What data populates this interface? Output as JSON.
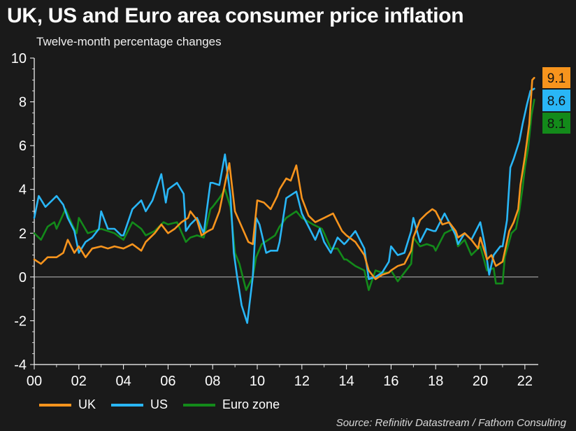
{
  "title": "UK, US and Euro area consumer price inflation",
  "subtitle": "Twelve-month percentage changes",
  "source": "Source: Refinitiv Datastream / Fathom Consulting",
  "colors": {
    "background": "#1a1a1a",
    "uk": "#f7941d",
    "us": "#29b6f6",
    "euro": "#138a1a",
    "axis": "#ffffff"
  },
  "chart_data": {
    "type": "line",
    "title": "UK, US and Euro area consumer price inflation",
    "ylabel": "Twelve-month percentage changes",
    "xlim": [
      2000,
      2022.6
    ],
    "ylim": [
      -4,
      10
    ],
    "y_ticks": [
      -4,
      -2,
      0,
      2,
      4,
      6,
      8,
      10
    ],
    "x_ticks": [
      {
        "value": 2000,
        "label": "00"
      },
      {
        "value": 2002,
        "label": "02"
      },
      {
        "value": 2004,
        "label": "04"
      },
      {
        "value": 2006,
        "label": "06"
      },
      {
        "value": 2008,
        "label": "08"
      },
      {
        "value": 2010,
        "label": "10"
      },
      {
        "value": 2012,
        "label": "12"
      },
      {
        "value": 2014,
        "label": "14"
      },
      {
        "value": 2016,
        "label": "16"
      },
      {
        "value": 2018,
        "label": "18"
      },
      {
        "value": 2020,
        "label": "20"
      },
      {
        "value": 2022,
        "label": "22"
      }
    ],
    "series": [
      {
        "name": "UK",
        "key": "uk",
        "last_label": "9.1",
        "points": [
          [
            2000.0,
            0.8
          ],
          [
            2000.3,
            0.6
          ],
          [
            2000.6,
            0.9
          ],
          [
            2001.0,
            0.9
          ],
          [
            2001.3,
            1.1
          ],
          [
            2001.5,
            1.7
          ],
          [
            2001.8,
            1.1
          ],
          [
            2002.0,
            1.4
          ],
          [
            2002.3,
            0.9
          ],
          [
            2002.6,
            1.3
          ],
          [
            2003.0,
            1.4
          ],
          [
            2003.3,
            1.3
          ],
          [
            2003.6,
            1.4
          ],
          [
            2004.0,
            1.3
          ],
          [
            2004.4,
            1.5
          ],
          [
            2004.8,
            1.2
          ],
          [
            2005.0,
            1.6
          ],
          [
            2005.4,
            2.0
          ],
          [
            2005.7,
            2.4
          ],
          [
            2006.0,
            2.0
          ],
          [
            2006.3,
            2.2
          ],
          [
            2006.6,
            2.5
          ],
          [
            2006.9,
            2.7
          ],
          [
            2007.0,
            3.0
          ],
          [
            2007.3,
            2.6
          ],
          [
            2007.5,
            1.9
          ],
          [
            2007.8,
            2.1
          ],
          [
            2008.0,
            2.2
          ],
          [
            2008.3,
            3.0
          ],
          [
            2008.6,
            4.5
          ],
          [
            2008.75,
            5.2
          ],
          [
            2009.0,
            3.0
          ],
          [
            2009.3,
            2.3
          ],
          [
            2009.6,
            1.6
          ],
          [
            2009.8,
            1.5
          ],
          [
            2010.0,
            3.5
          ],
          [
            2010.3,
            3.4
          ],
          [
            2010.6,
            3.1
          ],
          [
            2010.9,
            3.7
          ],
          [
            2011.0,
            4.0
          ],
          [
            2011.3,
            4.5
          ],
          [
            2011.5,
            4.4
          ],
          [
            2011.75,
            5.1
          ],
          [
            2012.0,
            3.6
          ],
          [
            2012.3,
            2.8
          ],
          [
            2012.6,
            2.5
          ],
          [
            2013.0,
            2.7
          ],
          [
            2013.4,
            2.9
          ],
          [
            2013.8,
            2.1
          ],
          [
            2014.0,
            1.9
          ],
          [
            2014.4,
            1.6
          ],
          [
            2014.8,
            1.0
          ],
          [
            2015.0,
            0.3
          ],
          [
            2015.3,
            -0.1
          ],
          [
            2015.6,
            0.1
          ],
          [
            2015.9,
            0.2
          ],
          [
            2016.0,
            0.3
          ],
          [
            2016.3,
            0.5
          ],
          [
            2016.6,
            0.6
          ],
          [
            2016.9,
            1.2
          ],
          [
            2017.0,
            1.8
          ],
          [
            2017.3,
            2.6
          ],
          [
            2017.6,
            2.9
          ],
          [
            2017.85,
            3.1
          ],
          [
            2018.0,
            3.0
          ],
          [
            2018.3,
            2.4
          ],
          [
            2018.6,
            2.5
          ],
          [
            2018.9,
            2.1
          ],
          [
            2019.0,
            1.8
          ],
          [
            2019.3,
            2.0
          ],
          [
            2019.6,
            1.7
          ],
          [
            2019.9,
            1.3
          ],
          [
            2020.0,
            1.8
          ],
          [
            2020.3,
            0.8
          ],
          [
            2020.5,
            1.0
          ],
          [
            2020.7,
            0.5
          ],
          [
            2021.0,
            0.7
          ],
          [
            2021.3,
            2.1
          ],
          [
            2021.5,
            2.5
          ],
          [
            2021.7,
            3.1
          ],
          [
            2021.8,
            4.2
          ],
          [
            2022.0,
            5.5
          ],
          [
            2022.2,
            7.0
          ],
          [
            2022.33,
            9.0
          ],
          [
            2022.42,
            9.1
          ]
        ]
      },
      {
        "name": "US",
        "key": "us",
        "last_label": "8.6",
        "points": [
          [
            2000.0,
            2.7
          ],
          [
            2000.2,
            3.7
          ],
          [
            2000.5,
            3.2
          ],
          [
            2000.8,
            3.5
          ],
          [
            2001.0,
            3.7
          ],
          [
            2001.3,
            3.3
          ],
          [
            2001.5,
            2.7
          ],
          [
            2001.8,
            2.1
          ],
          [
            2002.0,
            1.1
          ],
          [
            2002.3,
            1.6
          ],
          [
            2002.6,
            1.8
          ],
          [
            2002.9,
            2.2
          ],
          [
            2003.0,
            3.0
          ],
          [
            2003.3,
            2.2
          ],
          [
            2003.6,
            2.2
          ],
          [
            2003.9,
            1.9
          ],
          [
            2004.0,
            1.9
          ],
          [
            2004.4,
            3.1
          ],
          [
            2004.8,
            3.5
          ],
          [
            2005.0,
            3.0
          ],
          [
            2005.3,
            3.5
          ],
          [
            2005.7,
            4.7
          ],
          [
            2005.9,
            3.4
          ],
          [
            2006.0,
            4.0
          ],
          [
            2006.4,
            4.3
          ],
          [
            2006.7,
            3.8
          ],
          [
            2006.8,
            2.1
          ],
          [
            2007.0,
            2.4
          ],
          [
            2007.3,
            2.7
          ],
          [
            2007.6,
            2.0
          ],
          [
            2007.9,
            4.3
          ],
          [
            2008.0,
            4.3
          ],
          [
            2008.3,
            4.2
          ],
          [
            2008.55,
            5.6
          ],
          [
            2008.8,
            3.7
          ],
          [
            2008.95,
            1.1
          ],
          [
            2009.1,
            0.0
          ],
          [
            2009.3,
            -1.3
          ],
          [
            2009.55,
            -2.1
          ],
          [
            2009.8,
            0.0
          ],
          [
            2009.95,
            2.7
          ],
          [
            2010.1,
            2.4
          ],
          [
            2010.4,
            1.1
          ],
          [
            2010.6,
            1.2
          ],
          [
            2010.9,
            1.2
          ],
          [
            2011.0,
            1.6
          ],
          [
            2011.3,
            3.6
          ],
          [
            2011.75,
            3.9
          ],
          [
            2012.0,
            2.9
          ],
          [
            2012.3,
            2.3
          ],
          [
            2012.6,
            1.7
          ],
          [
            2012.8,
            2.2
          ],
          [
            2013.0,
            1.6
          ],
          [
            2013.3,
            1.1
          ],
          [
            2013.6,
            1.8
          ],
          [
            2013.9,
            1.5
          ],
          [
            2014.0,
            1.6
          ],
          [
            2014.4,
            2.1
          ],
          [
            2014.8,
            1.3
          ],
          [
            2015.0,
            -0.1
          ],
          [
            2015.3,
            0.0
          ],
          [
            2015.6,
            0.2
          ],
          [
            2015.9,
            0.7
          ],
          [
            2016.0,
            1.4
          ],
          [
            2016.3,
            1.0
          ],
          [
            2016.6,
            1.1
          ],
          [
            2016.9,
            2.1
          ],
          [
            2017.0,
            2.7
          ],
          [
            2017.3,
            1.6
          ],
          [
            2017.6,
            2.2
          ],
          [
            2017.9,
            2.1
          ],
          [
            2018.0,
            2.1
          ],
          [
            2018.4,
            2.9
          ],
          [
            2018.7,
            2.3
          ],
          [
            2018.9,
            1.9
          ],
          [
            2019.0,
            1.5
          ],
          [
            2019.3,
            2.0
          ],
          [
            2019.6,
            1.7
          ],
          [
            2019.9,
            2.3
          ],
          [
            2020.0,
            2.5
          ],
          [
            2020.2,
            1.5
          ],
          [
            2020.4,
            0.1
          ],
          [
            2020.6,
            1.0
          ],
          [
            2020.9,
            1.4
          ],
          [
            2021.0,
            1.4
          ],
          [
            2021.2,
            2.6
          ],
          [
            2021.35,
            5.0
          ],
          [
            2021.5,
            5.4
          ],
          [
            2021.75,
            6.2
          ],
          [
            2021.9,
            7.0
          ],
          [
            2022.1,
            7.9
          ],
          [
            2022.25,
            8.5
          ],
          [
            2022.42,
            8.6
          ]
        ]
      },
      {
        "name": "Euro zone",
        "key": "euro",
        "last_label": "8.1",
        "points": [
          [
            2000.0,
            2.0
          ],
          [
            2000.3,
            1.7
          ],
          [
            2000.6,
            2.3
          ],
          [
            2000.9,
            2.5
          ],
          [
            2001.0,
            2.2
          ],
          [
            2001.4,
            3.1
          ],
          [
            2001.7,
            2.4
          ],
          [
            2001.9,
            2.0
          ],
          [
            2002.0,
            2.7
          ],
          [
            2002.4,
            2.0
          ],
          [
            2002.7,
            2.1
          ],
          [
            2003.0,
            2.2
          ],
          [
            2003.3,
            2.1
          ],
          [
            2003.6,
            2.0
          ],
          [
            2004.0,
            1.7
          ],
          [
            2004.4,
            2.5
          ],
          [
            2004.8,
            2.2
          ],
          [
            2005.0,
            1.9
          ],
          [
            2005.4,
            2.1
          ],
          [
            2005.8,
            2.5
          ],
          [
            2006.0,
            2.4
          ],
          [
            2006.4,
            2.5
          ],
          [
            2006.8,
            1.6
          ],
          [
            2007.0,
            1.8
          ],
          [
            2007.3,
            1.9
          ],
          [
            2007.6,
            1.8
          ],
          [
            2007.9,
            3.1
          ],
          [
            2008.0,
            3.2
          ],
          [
            2008.3,
            3.6
          ],
          [
            2008.55,
            4.0
          ],
          [
            2008.8,
            3.2
          ],
          [
            2009.0,
            1.1
          ],
          [
            2009.2,
            0.6
          ],
          [
            2009.5,
            -0.6
          ],
          [
            2009.8,
            0.0
          ],
          [
            2009.95,
            0.9
          ],
          [
            2010.2,
            1.5
          ],
          [
            2010.5,
            1.7
          ],
          [
            2010.8,
            1.9
          ],
          [
            2011.0,
            2.3
          ],
          [
            2011.3,
            2.7
          ],
          [
            2011.75,
            3.0
          ],
          [
            2012.0,
            2.7
          ],
          [
            2012.5,
            2.4
          ],
          [
            2012.9,
            2.2
          ],
          [
            2013.0,
            2.0
          ],
          [
            2013.3,
            1.3
          ],
          [
            2013.6,
            1.3
          ],
          [
            2013.9,
            0.8
          ],
          [
            2014.0,
            0.8
          ],
          [
            2014.4,
            0.5
          ],
          [
            2014.8,
            0.3
          ],
          [
            2015.0,
            -0.6
          ],
          [
            2015.3,
            0.3
          ],
          [
            2015.6,
            0.2
          ],
          [
            2015.9,
            0.2
          ],
          [
            2016.0,
            0.3
          ],
          [
            2016.3,
            -0.2
          ],
          [
            2016.6,
            0.2
          ],
          [
            2016.9,
            0.6
          ],
          [
            2017.0,
            1.8
          ],
          [
            2017.3,
            1.4
          ],
          [
            2017.6,
            1.5
          ],
          [
            2017.9,
            1.4
          ],
          [
            2018.0,
            1.2
          ],
          [
            2018.4,
            2.0
          ],
          [
            2018.8,
            2.2
          ],
          [
            2019.0,
            1.4
          ],
          [
            2019.3,
            1.7
          ],
          [
            2019.6,
            1.0
          ],
          [
            2019.9,
            1.3
          ],
          [
            2020.0,
            1.4
          ],
          [
            2020.3,
            0.3
          ],
          [
            2020.6,
            0.4
          ],
          [
            2020.7,
            -0.3
          ],
          [
            2021.0,
            -0.3
          ],
          [
            2021.1,
            0.9
          ],
          [
            2021.4,
            2.0
          ],
          [
            2021.6,
            2.2
          ],
          [
            2021.75,
            3.0
          ],
          [
            2021.9,
            4.1
          ],
          [
            2022.0,
            5.0
          ],
          [
            2022.15,
            5.9
          ],
          [
            2022.3,
            7.4
          ],
          [
            2022.42,
            8.1
          ]
        ]
      }
    ]
  }
}
